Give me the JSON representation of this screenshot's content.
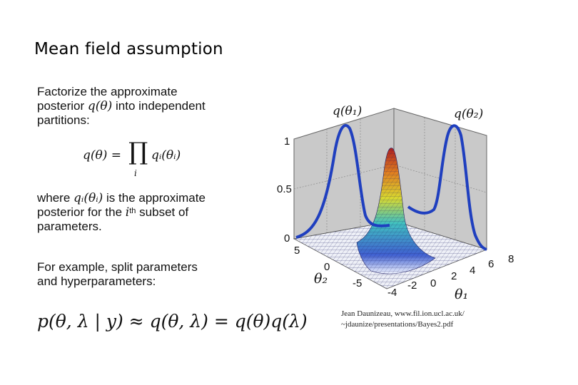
{
  "slide": {
    "title": "Mean field assumption",
    "para1_a": "Factorize the approximate",
    "para1_b": "posterior",
    "para1_b2": "into independent",
    "para1_c": "partitions:",
    "para2_a1": "where",
    "para2_a2": "is the approximate",
    "para2_b1": "posterior for the",
    "para2_b2": "subset of",
    "para2_c": "parameters.",
    "para3_a": "For example, split parameters",
    "para3_b": "and hyperparameters:",
    "credit_line1": "Jean Daunizeau, www.fil.ion.ucl.ac.uk/",
    "credit_line2": "~jdaunize/presentations/Bayes2.pdf"
  },
  "math": {
    "q_theta": "q(θ)",
    "q_i_theta_i": "qᵢ(θᵢ)",
    "ith_i": "i",
    "ith_th": "th",
    "product_lhs": "q(θ) =",
    "product_symbol": "∏",
    "product_sub": "i",
    "product_rhs": "qᵢ(θᵢ)",
    "bottom_equation": "p(θ, λ | y) ≈ q(θ, λ) = q(θ)q(λ)"
  },
  "plot": {
    "label_q1": "q(θ₁)",
    "label_q2": "q(θ₂)",
    "z_ticks": [
      "1",
      "0.5",
      "0"
    ],
    "theta2_ticks": [
      "5",
      "0",
      "-5"
    ],
    "theta1_ticks": [
      "-4",
      "-2",
      "0",
      "2",
      "4",
      "6",
      "8"
    ],
    "axis_theta2": "θ₂",
    "axis_theta1": "θ₁",
    "colors": {
      "curve": "#1f3fbf",
      "wall": "#c8c8c8",
      "grid": "#7a7a7a"
    }
  }
}
